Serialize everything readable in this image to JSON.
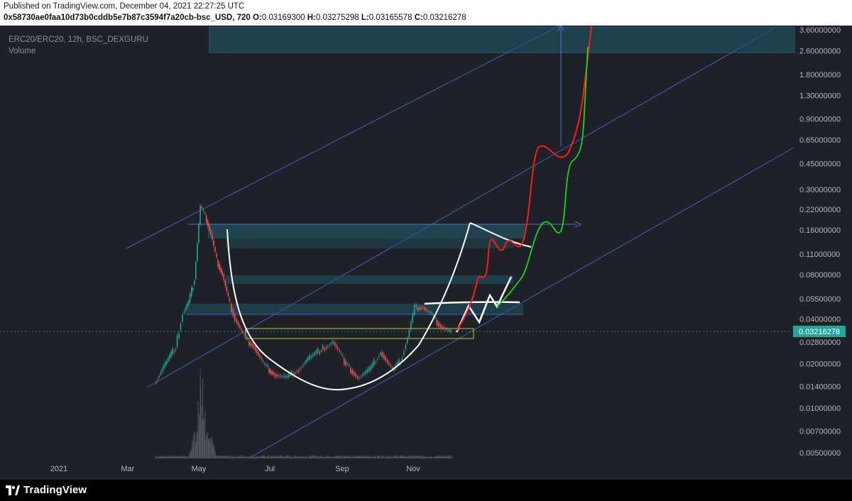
{
  "header": {
    "published": "Published on TradingView.com, December 04, 2021 22:27:25 UTC",
    "instrument": "0x58730ae0faa10d73b0cddb5e7b87c3594f7a20cb-bsc_USD, 720",
    "open_label": "O:",
    "open": "0.03169300",
    "high_label": "H:",
    "high": "0.03275298",
    "low_label": "L:",
    "low": "0.03165578",
    "close_label": "C:",
    "close": "0.03216278"
  },
  "legend": {
    "symbol": "ERC20/ERC20, 12h, BSC_DEXGURU",
    "volume": "Volume"
  },
  "footer": {
    "brand": "TradingView"
  },
  "colors": {
    "background": "#1e2127",
    "channel": "#3d62c4",
    "zone": "#1f5a6a",
    "zone_border": "#2f8fa8",
    "yellow_box": "#c9c826",
    "candle_up": "#26a69a",
    "candle_down": "#ef5350",
    "price_tag": "#26a69a",
    "drawing_white": "#ffffff",
    "path_red": "#ff1a1a",
    "path_green": "#20d020"
  },
  "chart_data": {
    "type": "candlestick",
    "timeframe": "12h",
    "y_scale": "log",
    "y_ticks": [
      "3.60000000",
      "2.60000000",
      "1.80000000",
      "1.30000000",
      "0.90000000",
      "0.65000000",
      "0.45000000",
      "0.30000000",
      "0.22000000",
      "0.16000000",
      "0.11000000",
      "0.08000000",
      "0.05500000",
      "0.04000000",
      "0.02800000",
      "0.02000000",
      "0.01400000",
      "0.01000000",
      "0.00700000",
      "0.00500000"
    ],
    "x_ticks": [
      "2021",
      "Mar",
      "May",
      "Jul",
      "Sep",
      "Nov"
    ],
    "last_price": "0.03216278",
    "price_series": [
      {
        "date": "2021-03-25",
        "close": 0.015
      },
      {
        "date": "2021-04-03",
        "close": 0.02
      },
      {
        "date": "2021-04-12",
        "close": 0.026
      },
      {
        "date": "2021-04-18",
        "close": 0.044
      },
      {
        "date": "2021-04-23",
        "close": 0.052
      },
      {
        "date": "2021-04-28",
        "close": 0.075
      },
      {
        "date": "2021-05-03",
        "close": 0.23
      },
      {
        "date": "2021-05-07",
        "close": 0.2
      },
      {
        "date": "2021-05-12",
        "close": 0.15
      },
      {
        "date": "2021-05-17",
        "close": 0.1
      },
      {
        "date": "2021-05-22",
        "close": 0.08
      },
      {
        "date": "2021-05-27",
        "close": 0.055
      },
      {
        "date": "2021-06-02",
        "close": 0.04
      },
      {
        "date": "2021-06-10",
        "close": 0.03
      },
      {
        "date": "2021-06-18",
        "close": 0.026
      },
      {
        "date": "2021-06-26",
        "close": 0.02
      },
      {
        "date": "2021-07-05",
        "close": 0.017
      },
      {
        "date": "2021-07-15",
        "close": 0.016
      },
      {
        "date": "2021-07-25",
        "close": 0.018
      },
      {
        "date": "2021-08-05",
        "close": 0.022
      },
      {
        "date": "2021-08-15",
        "close": 0.025
      },
      {
        "date": "2021-08-25",
        "close": 0.028
      },
      {
        "date": "2021-09-05",
        "close": 0.02
      },
      {
        "date": "2021-09-15",
        "close": 0.016
      },
      {
        "date": "2021-09-25",
        "close": 0.018
      },
      {
        "date": "2021-10-05",
        "close": 0.024
      },
      {
        "date": "2021-10-15",
        "close": 0.018
      },
      {
        "date": "2021-10-22",
        "close": 0.021
      },
      {
        "date": "2021-10-28",
        "close": 0.03
      },
      {
        "date": "2021-11-03",
        "close": 0.048
      },
      {
        "date": "2021-11-10",
        "close": 0.048
      },
      {
        "date": "2021-11-18",
        "close": 0.042
      },
      {
        "date": "2021-11-25",
        "close": 0.036
      },
      {
        "date": "2021-12-04",
        "close": 0.0322
      }
    ],
    "volume_spikes": [
      {
        "date": "2021-04-28",
        "relative": 0.32
      },
      {
        "date": "2021-05-03",
        "relative": 1.0
      },
      {
        "date": "2021-05-10",
        "relative": 0.4
      }
    ]
  }
}
